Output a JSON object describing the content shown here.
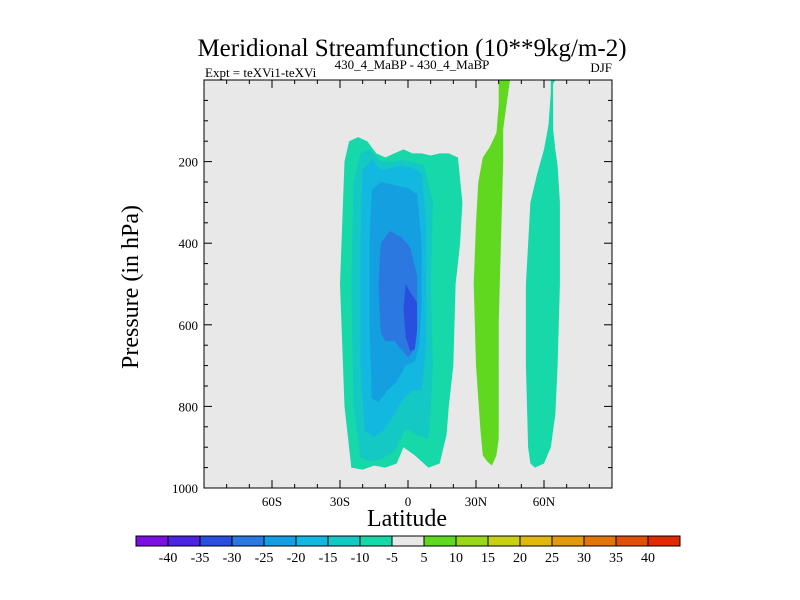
{
  "chart_data": {
    "type": "contour",
    "title": "Meridional Streamfunction (10**9kg/m-2)",
    "left_annotation": "Expt = teXVi1-teXVi",
    "center_annotation": "430_4_MaBP - 430_4_MaBP",
    "right_annotation": "DJF",
    "xlabel": "Latitude",
    "ylabel": "Pressure (in hPa)",
    "xlim": [
      -90,
      90
    ],
    "ylim": [
      1000,
      0
    ],
    "x_ticks": [
      {
        "value": -60,
        "label": "60S"
      },
      {
        "value": -30,
        "label": "30S"
      },
      {
        "value": 0,
        "label": "0"
      },
      {
        "value": 30,
        "label": "30N"
      },
      {
        "value": 60,
        "label": "60N"
      }
    ],
    "y_ticks": [
      {
        "value": 200,
        "label": "200"
      },
      {
        "value": 400,
        "label": "400"
      },
      {
        "value": 600,
        "label": "600"
      },
      {
        "value": 800,
        "label": "800"
      },
      {
        "value": 1000,
        "label": "1000"
      }
    ],
    "background_color": "#e8e8e8",
    "contour_levels": [
      -40,
      -35,
      -30,
      -25,
      -20,
      -15,
      -10,
      -5,
      5,
      10,
      15,
      20,
      25,
      30,
      35,
      40
    ],
    "colorbar_colors": [
      "#7a10e0",
      "#4a24e0",
      "#2a4ee0",
      "#2a78e0",
      "#14a0e0",
      "#12b8e0",
      "#14c8c4",
      "#16d8a8",
      "#e8e8e8",
      "#60d820",
      "#98d818",
      "#c8d014",
      "#e0b810",
      "#e09a0c",
      "#e07608",
      "#e05004",
      "#e02a04"
    ],
    "regions": [
      {
        "name": "neg-5",
        "color": "#16d8a8",
        "points": [
          [
            -25,
            950
          ],
          [
            -28,
            800
          ],
          [
            -30,
            500
          ],
          [
            -28,
            200
          ],
          [
            -26,
            150
          ],
          [
            -22,
            140
          ],
          [
            -18,
            150
          ],
          [
            -14,
            180
          ],
          [
            -10,
            190
          ],
          [
            -6,
            180
          ],
          [
            -2,
            170
          ],
          [
            2,
            180
          ],
          [
            6,
            180
          ],
          [
            10,
            185
          ],
          [
            14,
            180
          ],
          [
            18,
            180
          ],
          [
            22,
            190
          ],
          [
            24,
            300
          ],
          [
            23,
            400
          ],
          [
            21,
            500
          ],
          [
            20,
            700
          ],
          [
            18,
            800
          ],
          [
            17,
            870
          ],
          [
            14,
            940
          ],
          [
            9,
            950
          ],
          [
            3,
            920
          ],
          [
            -2,
            900
          ],
          [
            -5,
            940
          ],
          [
            -10,
            950
          ],
          [
            -15,
            945
          ],
          [
            -20,
            955
          ]
        ]
      },
      {
        "name": "neg-10",
        "color": "#14c8c4",
        "points": [
          [
            -21,
            925
          ],
          [
            -24,
            800
          ],
          [
            -25,
            500
          ],
          [
            -24,
            250
          ],
          [
            -21,
            180
          ],
          [
            -17,
            170
          ],
          [
            -12,
            200
          ],
          [
            -7,
            200
          ],
          [
            -3,
            195
          ],
          [
            2,
            200
          ],
          [
            7,
            210
          ],
          [
            11,
            300
          ],
          [
            10,
            500
          ],
          [
            11,
            700
          ],
          [
            10,
            800
          ],
          [
            9,
            880
          ],
          [
            4,
            870
          ],
          [
            -1,
            855
          ],
          [
            -6,
            910
          ],
          [
            -12,
            930
          ],
          [
            -17,
            935
          ]
        ]
      },
      {
        "name": "neg-15",
        "color": "#12b8e0",
        "points": [
          [
            -19,
            860
          ],
          [
            -21,
            700
          ],
          [
            -21,
            400
          ],
          [
            -20,
            220
          ],
          [
            -16,
            195
          ],
          [
            -12,
            220
          ],
          [
            -7,
            215
          ],
          [
            -3,
            210
          ],
          [
            2,
            215
          ],
          [
            6,
            230
          ],
          [
            8,
            350
          ],
          [
            8,
            500
          ],
          [
            8,
            650
          ],
          [
            6,
            760
          ],
          [
            2,
            760
          ],
          [
            -2,
            780
          ],
          [
            -6,
            820
          ],
          [
            -11,
            860
          ],
          [
            -15,
            875
          ]
        ]
      },
      {
        "name": "neg-20",
        "color": "#14a0e0",
        "points": [
          [
            -16,
            780
          ],
          [
            -17,
            600
          ],
          [
            -17,
            400
          ],
          [
            -16,
            270
          ],
          [
            -12,
            250
          ],
          [
            -8,
            255
          ],
          [
            -4,
            260
          ],
          [
            0,
            265
          ],
          [
            4,
            280
          ],
          [
            6,
            400
          ],
          [
            6,
            550
          ],
          [
            5,
            650
          ],
          [
            3,
            690
          ],
          [
            -1,
            700
          ],
          [
            -5,
            740
          ],
          [
            -9,
            760
          ],
          [
            -13,
            790
          ]
        ]
      },
      {
        "name": "neg-25",
        "color": "#2a78e0",
        "points": [
          [
            -12,
            620
          ],
          [
            -13,
            500
          ],
          [
            -12,
            400
          ],
          [
            -8,
            370
          ],
          [
            -3,
            385
          ],
          [
            1,
            410
          ],
          [
            4,
            480
          ],
          [
            4,
            620
          ],
          [
            3,
            660
          ],
          [
            0,
            680
          ],
          [
            -3,
            660
          ],
          [
            -6,
            640
          ],
          [
            -10,
            640
          ]
        ]
      },
      {
        "name": "neg-30",
        "color": "#2a4ee0",
        "points": [
          [
            -1,
            500
          ],
          [
            1,
            520
          ],
          [
            4,
            545
          ],
          [
            4,
            610
          ],
          [
            3,
            660
          ],
          [
            1,
            665
          ],
          [
            -1,
            630
          ],
          [
            -2,
            560
          ]
        ]
      },
      {
        "name": "pos-5-a",
        "color": "#60d820",
        "points": [
          [
            40,
            0
          ],
          [
            45,
            0
          ],
          [
            44,
            40
          ],
          [
            42,
            120
          ],
          [
            42,
            200
          ],
          [
            41,
            400
          ],
          [
            40,
            600
          ],
          [
            40,
            800
          ],
          [
            40,
            880
          ],
          [
            39,
            920
          ],
          [
            37,
            945
          ],
          [
            35,
            935
          ],
          [
            33,
            920
          ],
          [
            32,
            860
          ],
          [
            30,
            700
          ],
          [
            29,
            500
          ],
          [
            30,
            350
          ],
          [
            31,
            250
          ],
          [
            33,
            190
          ],
          [
            36,
            165
          ],
          [
            39,
            130
          ],
          [
            40,
            60
          ]
        ]
      },
      {
        "name": "pos-5-b",
        "color": "#16d8a8",
        "points": [
          [
            63,
            0
          ],
          [
            65,
            0
          ],
          [
            64,
            10
          ],
          [
            64,
            120
          ],
          [
            65,
            170
          ],
          [
            66,
            210
          ],
          [
            67,
            300
          ],
          [
            67,
            500
          ],
          [
            66,
            700
          ],
          [
            65,
            820
          ],
          [
            63,
            900
          ],
          [
            60,
            940
          ],
          [
            56,
            950
          ],
          [
            54,
            940
          ],
          [
            53,
            900
          ],
          [
            52,
            700
          ],
          [
            52,
            500
          ],
          [
            54,
            300
          ],
          [
            57,
            230
          ],
          [
            60,
            170
          ],
          [
            61,
            140
          ],
          [
            62,
            110
          ],
          [
            63,
            30
          ]
        ]
      }
    ]
  }
}
